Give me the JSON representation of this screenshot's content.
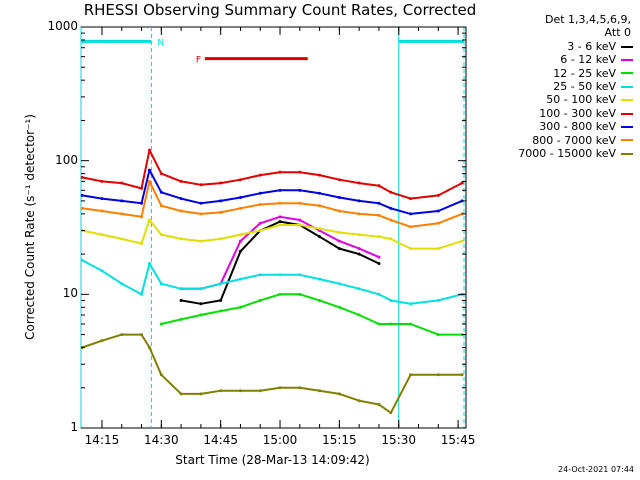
{
  "chart_data": {
    "type": "line",
    "title": "RHESSI Observing Summary Count Rates, Corrected",
    "xlabel": "Start Time (28-Mar-13 14:09:42)",
    "ylabel": "Corrected Count Rate (s⁻¹ detector⁻¹)",
    "yscale": "log",
    "ylim": [
      1,
      1000
    ],
    "xlim": [
      "14:09:42",
      "15:47:00"
    ],
    "xticks": [
      "14:15",
      "14:30",
      "14:45",
      "15:00",
      "15:15",
      "15:30",
      "15:45"
    ],
    "yticks": [
      "1",
      "10",
      "100",
      "1000"
    ],
    "legend_header": [
      "Det 1,3,4,5,6,9,",
      "Att 0"
    ],
    "legend_position": "right",
    "timestamp": "24-Oct-2021 07:44",
    "annotations": [
      {
        "text": "N",
        "color": "#00e0e0",
        "x_start": "14:09:42",
        "x_end": "14:27:30",
        "y": 780
      },
      {
        "text": "",
        "color": "#00e0e0",
        "x_start": "15:30:00",
        "x_end": "15:46:30",
        "y": 780
      },
      {
        "text": "F",
        "color": "#e00000",
        "x_start": "14:41:00",
        "x_end": "15:07:00",
        "y": 580
      }
    ],
    "night_boundaries": [
      "14:09:42",
      "14:27:30",
      "15:30:00",
      "15:46:30"
    ],
    "x": [
      "14:10",
      "14:15",
      "14:20",
      "14:25",
      "14:27",
      "14:30",
      "14:35",
      "14:40",
      "14:45",
      "14:50",
      "14:55",
      "15:00",
      "15:05",
      "15:10",
      "15:15",
      "15:20",
      "15:25",
      "15:28",
      "15:33",
      "15:40",
      "15:46"
    ],
    "series": [
      {
        "name": "3 - 6 keV",
        "color": "#000000",
        "values": [
          null,
          null,
          null,
          null,
          null,
          null,
          9,
          8.5,
          9,
          21,
          30,
          35,
          33,
          27,
          22,
          20,
          17,
          null,
          null,
          null,
          null
        ]
      },
      {
        "name": "6 - 12 keV",
        "color": "#e000e0",
        "values": [
          null,
          null,
          null,
          null,
          null,
          null,
          11,
          11,
          12,
          25,
          34,
          38,
          36,
          30,
          25,
          22,
          19,
          null,
          null,
          null,
          null
        ]
      },
      {
        "name": "12 - 25 keV",
        "color": "#00e000",
        "values": [
          null,
          null,
          null,
          null,
          null,
          6,
          6.5,
          7,
          7.5,
          8,
          9,
          10,
          10,
          9,
          8,
          7,
          6,
          6,
          6,
          5,
          5
        ]
      },
      {
        "name": "25 - 50 keV",
        "color": "#00e0e0",
        "values": [
          18,
          15,
          12,
          10,
          17,
          12,
          11,
          11,
          12,
          13,
          14,
          14,
          14,
          13,
          12,
          11,
          10,
          9,
          8.5,
          9,
          10
        ]
      },
      {
        "name": "50 - 100 keV",
        "color": "#e0e000",
        "values": [
          30,
          28,
          26,
          24,
          36,
          28,
          26,
          25,
          26,
          28,
          30,
          33,
          33,
          31,
          29,
          28,
          27,
          26,
          22,
          22,
          25
        ]
      },
      {
        "name": "100 - 300 keV",
        "color": "#e00000",
        "values": [
          75,
          70,
          68,
          62,
          120,
          80,
          70,
          66,
          68,
          72,
          78,
          82,
          82,
          78,
          72,
          68,
          65,
          58,
          52,
          55,
          68
        ]
      },
      {
        "name": "300 - 800 keV",
        "color": "#0000e0",
        "values": [
          55,
          52,
          50,
          48,
          85,
          58,
          52,
          48,
          50,
          53,
          57,
          60,
          60,
          57,
          53,
          50,
          48,
          44,
          40,
          42,
          50
        ]
      },
      {
        "name": "800 - 7000 keV",
        "color": "#ff8000",
        "values": [
          44,
          42,
          40,
          38,
          70,
          46,
          42,
          40,
          41,
          44,
          47,
          48,
          48,
          46,
          42,
          40,
          39,
          36,
          32,
          34,
          40
        ]
      },
      {
        "name": "7000 - 15000 keV",
        "color": "#808000",
        "values": [
          4,
          4.5,
          5,
          5,
          4,
          2.5,
          1.8,
          1.8,
          1.9,
          1.9,
          1.9,
          2,
          2,
          1.9,
          1.8,
          1.6,
          1.5,
          1.3,
          2.5,
          2.5,
          2.5
        ]
      }
    ]
  }
}
